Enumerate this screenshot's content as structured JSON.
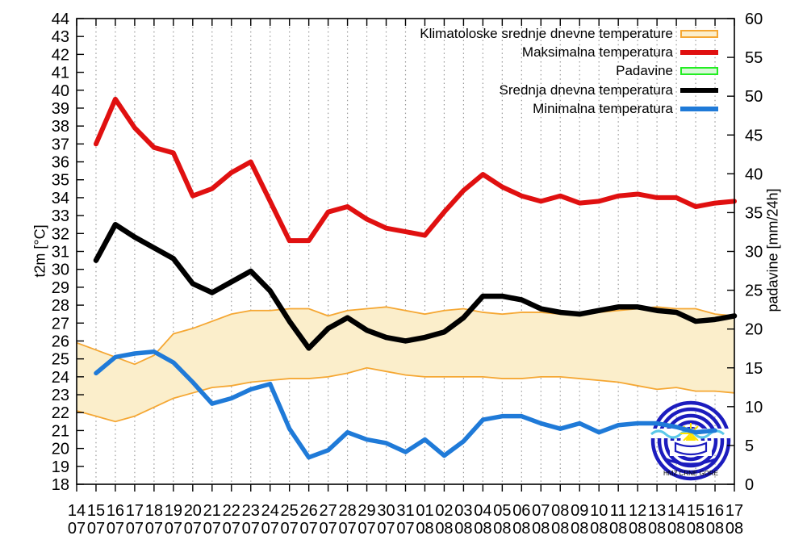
{
  "legend": [
    {
      "label": "Klimatoloske srednje dnevne temperature",
      "swatch": "band"
    },
    {
      "label": "Maksimalna temperatura",
      "swatch": "red-line"
    },
    {
      "label": "Padavine",
      "swatch": "green-band"
    },
    {
      "label": "Srednja dnevna temperatura",
      "swatch": "black-line"
    },
    {
      "label": "Minimalna temperatura",
      "swatch": "blue-line"
    }
  ],
  "colors": {
    "max_temp": "#e01010",
    "mean_temp": "#000000",
    "min_temp": "#1f7ad8",
    "band_fill": "#fbeecb",
    "band_edge": "#f5a733",
    "precip_fill": "#d8f8d8",
    "precip_edge": "#22ee22",
    "grid": "#999999",
    "axis": "#000000",
    "logo_blue": "#1c1cbe",
    "logo_wave": "#5bc8e8",
    "logo_sun": "#ffe200"
  },
  "logo": {
    "text": "HMZ CRNE GORE"
  },
  "chart_data": {
    "type": "line",
    "title": "",
    "grid": "vertical-dotted",
    "legend_position": "top-right-inside",
    "x_axis": {
      "tick_days": [
        "14",
        "15",
        "16",
        "17",
        "18",
        "19",
        "20",
        "21",
        "22",
        "23",
        "24",
        "25",
        "26",
        "27",
        "28",
        "29",
        "30",
        "31",
        "01",
        "02",
        "03",
        "04",
        "05",
        "06",
        "07",
        "08",
        "09",
        "10",
        "11",
        "12",
        "13",
        "14",
        "15",
        "16",
        "17"
      ],
      "tick_months": [
        "07",
        "07",
        "07",
        "07",
        "07",
        "07",
        "07",
        "07",
        "07",
        "07",
        "07",
        "07",
        "07",
        "07",
        "07",
        "07",
        "07",
        "07",
        "08",
        "08",
        "08",
        "08",
        "08",
        "08",
        "08",
        "08",
        "08",
        "08",
        "08",
        "08",
        "08",
        "08",
        "08",
        "08",
        "08"
      ]
    },
    "y_left": {
      "label": "t2m [°C]",
      "min": 18,
      "max": 44,
      "tick_step": 1
    },
    "y_right": {
      "label": "padavine [mm/24h]",
      "min": 0,
      "max": 60,
      "tick_step": 5
    },
    "series": [
      {
        "name": "Klimatoloske srednje dnevne temperature",
        "type": "band",
        "axis": "left",
        "start_index": 0,
        "upper": [
          25.9,
          25.5,
          25.1,
          24.7,
          25.2,
          26.4,
          26.7,
          27.1,
          27.5,
          27.7,
          27.7,
          27.8,
          27.8,
          27.4,
          27.7,
          27.8,
          27.9,
          27.7,
          27.5,
          27.7,
          27.8,
          27.6,
          27.5,
          27.6,
          27.6,
          27.5,
          27.5,
          27.6,
          27.7,
          27.8,
          27.9,
          27.8,
          27.8,
          27.5,
          27.4
        ],
        "lower": [
          22.1,
          21.8,
          21.5,
          21.8,
          22.3,
          22.8,
          23.1,
          23.4,
          23.5,
          23.7,
          23.8,
          23.9,
          23.9,
          24.0,
          24.2,
          24.5,
          24.3,
          24.1,
          24.0,
          24.0,
          24.0,
          24.0,
          23.9,
          23.9,
          24.0,
          24.0,
          23.9,
          23.8,
          23.7,
          23.5,
          23.3,
          23.4,
          23.2,
          23.2,
          23.1
        ]
      },
      {
        "name": "Maksimalna temperatura",
        "type": "line",
        "axis": "left",
        "start_index": 1,
        "values": [
          37.0,
          39.5,
          37.9,
          36.8,
          36.5,
          34.1,
          34.5,
          35.4,
          36.0,
          33.8,
          31.6,
          31.6,
          33.2,
          33.5,
          32.8,
          32.3,
          32.1,
          31.9,
          33.2,
          34.4,
          35.3,
          34.6,
          34.1,
          33.8,
          34.1,
          33.7,
          33.8,
          34.1,
          34.2,
          34.0,
          34.0,
          33.5,
          33.7,
          33.8
        ]
      },
      {
        "name": "Padavine",
        "type": "bar",
        "axis": "right",
        "start_index": 1,
        "values": []
      },
      {
        "name": "Srednja dnevna temperatura",
        "type": "line",
        "axis": "left",
        "start_index": 1,
        "values": [
          30.5,
          32.5,
          31.8,
          31.2,
          30.6,
          29.2,
          28.7,
          29.3,
          29.9,
          28.8,
          27.1,
          25.6,
          26.7,
          27.3,
          26.6,
          26.2,
          26.0,
          26.2,
          26.5,
          27.3,
          28.5,
          28.5,
          28.3,
          27.8,
          27.6,
          27.5,
          27.7,
          27.9,
          27.9,
          27.7,
          27.6,
          27.1,
          27.2,
          27.4
        ]
      },
      {
        "name": "Minimalna temperatura",
        "type": "line",
        "axis": "left",
        "start_index": 1,
        "values": [
          24.2,
          25.1,
          25.3,
          25.4,
          24.8,
          23.7,
          22.5,
          22.8,
          23.3,
          23.6,
          21.1,
          19.5,
          19.9,
          20.9,
          20.5,
          20.3,
          19.8,
          20.5,
          19.6,
          20.4,
          21.6,
          21.8,
          21.8,
          21.4,
          21.1,
          21.4,
          20.9,
          21.3,
          21.4,
          21.4,
          21.2,
          20.9,
          21.0
        ]
      }
    ]
  }
}
